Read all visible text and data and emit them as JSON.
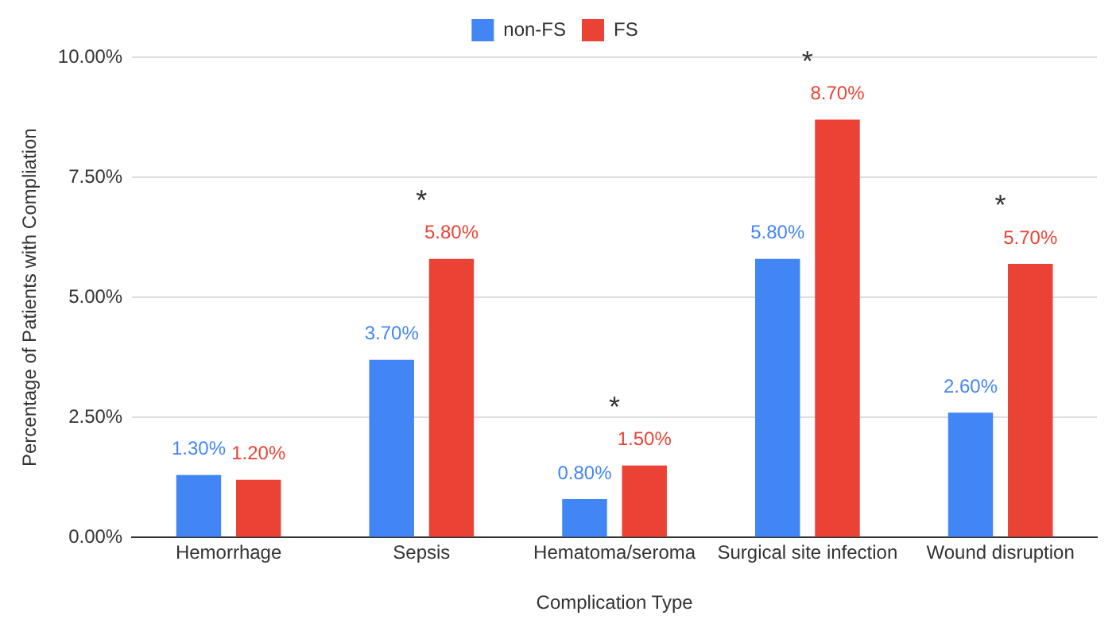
{
  "chart_data": {
    "type": "bar",
    "xlabel": "Complication Type",
    "ylabel": "Percentage of Patients with Compliation",
    "categories": [
      "Hemorrhage",
      "Sepsis",
      "Hematoma/seroma",
      "Surgical site infection",
      "Wound disruption"
    ],
    "series": [
      {
        "name": "non-FS",
        "color": "#4285f4",
        "values": [
          1.3,
          3.7,
          0.8,
          5.8,
          2.6
        ],
        "value_labels": [
          "1.30%",
          "3.70%",
          "0.80%",
          "5.80%",
          "2.60%"
        ]
      },
      {
        "name": "FS",
        "color": "#ea4335",
        "values": [
          1.2,
          5.8,
          1.5,
          8.7,
          5.7
        ],
        "value_labels": [
          "1.20%",
          "5.80%",
          "1.50%",
          "8.70%",
          "5.70%"
        ]
      }
    ],
    "ylim": [
      0,
      10
    ],
    "yticks": [
      {
        "value": 0,
        "label": "0.00%"
      },
      {
        "value": 2.5,
        "label": "2.50%"
      },
      {
        "value": 5,
        "label": "5.00%"
      },
      {
        "value": 7.5,
        "label": "7.50%"
      },
      {
        "value": 10,
        "label": "10.00%"
      }
    ],
    "grid": "y",
    "legend": "top",
    "annotations": [
      {
        "text": "*",
        "x": "Sepsis",
        "y": 5.8
      },
      {
        "text": "*",
        "x": "Hematoma/seroma",
        "y": 1.5
      },
      {
        "text": "*",
        "x": "Surgical site infection",
        "y": 8.7
      },
      {
        "text": "*",
        "x": "Wound disruption",
        "y": 5.7
      }
    ]
  }
}
